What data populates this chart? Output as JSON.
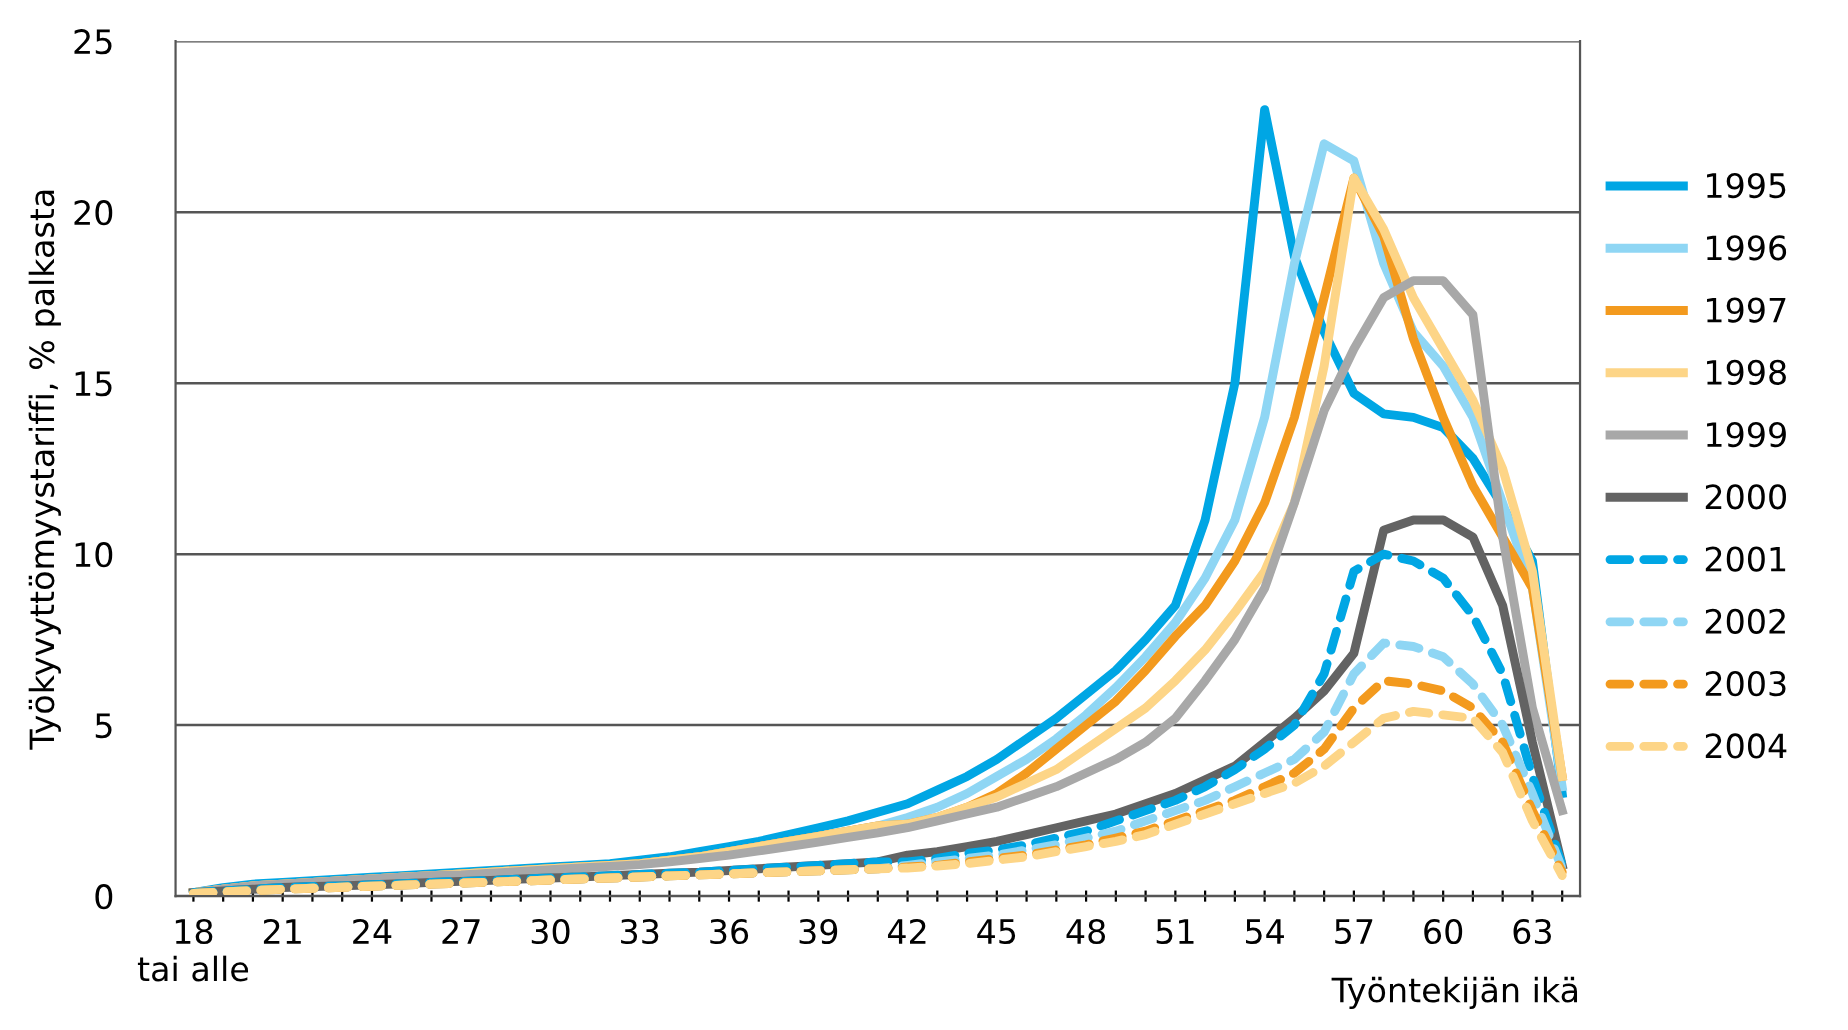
{
  "chart_data": {
    "type": "line",
    "ylabel": "Työkyvyttömyystariffi, % palkasta",
    "xlabel": "Työntekijän ikä",
    "x": [
      18,
      19,
      20,
      21,
      22,
      23,
      24,
      25,
      26,
      27,
      28,
      29,
      30,
      31,
      32,
      33,
      34,
      35,
      36,
      37,
      38,
      39,
      40,
      41,
      42,
      43,
      44,
      45,
      46,
      47,
      48,
      49,
      50,
      51,
      52,
      53,
      54,
      55,
      56,
      57,
      58,
      59,
      60,
      61,
      62,
      63,
      64
    ],
    "xlim": [
      17.4,
      64.6
    ],
    "xticks": [
      {
        "value": 18,
        "label": "18\ntai alle"
      },
      {
        "value": 19,
        "label": null
      },
      {
        "value": 20,
        "label": null
      },
      21,
      {
        "value": 22,
        "label": null
      },
      {
        "value": 23,
        "label": null
      },
      24,
      {
        "value": 25,
        "label": null
      },
      {
        "value": 26,
        "label": null
      },
      27,
      {
        "value": 28,
        "label": null
      },
      {
        "value": 29,
        "label": null
      },
      30,
      {
        "value": 31,
        "label": null
      },
      {
        "value": 32,
        "label": null
      },
      33,
      {
        "value": 34,
        "label": null
      },
      {
        "value": 35,
        "label": null
      },
      36,
      {
        "value": 37,
        "label": null
      },
      {
        "value": 38,
        "label": null
      },
      39,
      {
        "value": 40,
        "label": null
      },
      {
        "value": 41,
        "label": null
      },
      42,
      {
        "value": 43,
        "label": null
      },
      {
        "value": 44,
        "label": null
      },
      45,
      {
        "value": 46,
        "label": null
      },
      {
        "value": 47,
        "label": null
      },
      48,
      {
        "value": 49,
        "label": null
      },
      {
        "value": 50,
        "label": null
      },
      51,
      {
        "value": 52,
        "label": null
      },
      {
        "value": 53,
        "label": null
      },
      54,
      {
        "value": 55,
        "label": null
      },
      {
        "value": 56,
        "label": null
      },
      57,
      {
        "value": 58,
        "label": null
      },
      {
        "value": 59,
        "label": null
      },
      60,
      {
        "value": 61,
        "label": null
      },
      {
        "value": 62,
        "label": null
      },
      63,
      {
        "value": 64,
        "label": null
      }
    ],
    "ylim": [
      0,
      25
    ],
    "yticks": [
      0,
      5,
      10,
      15,
      20,
      25
    ],
    "grid": "y",
    "legend": "right",
    "series": [
      {
        "name": "1995",
        "color": "#00a6e4",
        "line_style": "solid",
        "values": [
          0.1,
          0.25,
          0.35,
          0.4,
          0.45,
          0.5,
          0.55,
          0.6,
          0.65,
          0.7,
          0.75,
          0.8,
          0.85,
          0.9,
          0.95,
          1.05,
          1.15,
          1.3,
          1.45,
          1.6,
          1.8,
          2.0,
          2.2,
          2.45,
          2.7,
          3.1,
          3.5,
          4.0,
          4.6,
          5.2,
          5.9,
          6.6,
          7.5,
          8.5,
          11.0,
          15.0,
          23.0,
          18.7,
          16.5,
          14.7,
          14.1,
          14.0,
          13.7,
          12.8,
          11.4,
          9.8,
          3.0
        ]
      },
      {
        "name": "1996",
        "color": "#8fd6f4",
        "line_style": "solid",
        "values": [
          0.1,
          0.2,
          0.3,
          0.35,
          0.4,
          0.45,
          0.5,
          0.55,
          0.6,
          0.65,
          0.7,
          0.75,
          0.8,
          0.85,
          0.9,
          0.95,
          1.05,
          1.15,
          1.3,
          1.45,
          1.6,
          1.75,
          1.9,
          2.05,
          2.3,
          2.6,
          3.0,
          3.5,
          4.0,
          4.6,
          5.3,
          6.1,
          7.0,
          8.0,
          9.3,
          11.0,
          14.0,
          18.5,
          22.0,
          21.5,
          18.5,
          16.5,
          15.5,
          14.0,
          11.5,
          9.0,
          3.2
        ]
      },
      {
        "name": "1997",
        "color": "#f39a1e",
        "line_style": "solid",
        "values": [
          0.1,
          0.2,
          0.3,
          0.35,
          0.4,
          0.45,
          0.5,
          0.55,
          0.6,
          0.65,
          0.7,
          0.75,
          0.8,
          0.85,
          0.9,
          0.95,
          1.05,
          1.15,
          1.3,
          1.45,
          1.6,
          1.75,
          1.9,
          2.05,
          2.1,
          2.3,
          2.6,
          3.0,
          3.6,
          4.3,
          5.0,
          5.7,
          6.6,
          7.6,
          8.5,
          9.8,
          11.5,
          14.0,
          17.5,
          21.0,
          19.3,
          16.3,
          14.0,
          12.0,
          10.5,
          9.0,
          3.5
        ]
      },
      {
        "name": "1998",
        "color": "#fdd587",
        "line_style": "solid",
        "values": [
          0.1,
          0.2,
          0.3,
          0.35,
          0.4,
          0.45,
          0.5,
          0.55,
          0.6,
          0.65,
          0.7,
          0.75,
          0.8,
          0.85,
          0.9,
          0.95,
          1.05,
          1.15,
          1.3,
          1.45,
          1.6,
          1.75,
          1.9,
          2.05,
          2.1,
          2.3,
          2.6,
          2.9,
          3.3,
          3.7,
          4.3,
          4.9,
          5.5,
          6.3,
          7.2,
          8.3,
          9.5,
          11.5,
          15.5,
          21.0,
          19.5,
          17.5,
          16.0,
          14.5,
          12.5,
          9.5,
          3.5
        ]
      },
      {
        "name": "1999",
        "color": "#a8a8a8",
        "line_style": "solid",
        "values": [
          0.1,
          0.2,
          0.3,
          0.35,
          0.4,
          0.45,
          0.5,
          0.55,
          0.6,
          0.62,
          0.67,
          0.72,
          0.77,
          0.82,
          0.87,
          0.92,
          1.0,
          1.1,
          1.2,
          1.32,
          1.45,
          1.58,
          1.72,
          1.85,
          2.0,
          2.2,
          2.4,
          2.6,
          2.9,
          3.2,
          3.6,
          4.0,
          4.5,
          5.2,
          6.3,
          7.5,
          9.0,
          11.5,
          14.2,
          16.0,
          17.5,
          18.0,
          18.0,
          17.0,
          10.5,
          5.5,
          2.5
        ]
      },
      {
        "name": "2000",
        "color": "#636363",
        "line_style": "solid",
        "values": [
          0.1,
          0.15,
          0.2,
          0.25,
          0.28,
          0.3,
          0.33,
          0.36,
          0.4,
          0.43,
          0.46,
          0.5,
          0.53,
          0.56,
          0.6,
          0.63,
          0.67,
          0.7,
          0.75,
          0.8,
          0.85,
          0.9,
          0.95,
          1.0,
          1.2,
          1.3,
          1.45,
          1.6,
          1.8,
          2.0,
          2.2,
          2.4,
          2.7,
          3.0,
          3.4,
          3.8,
          4.5,
          5.2,
          6.0,
          7.1,
          10.7,
          11.0,
          11.0,
          10.5,
          8.5,
          4.5,
          0.9
        ]
      },
      {
        "name": "2001",
        "color": "#00a6e4",
        "line_style": "dashed",
        "values": [
          0.1,
          0.15,
          0.2,
          0.25,
          0.28,
          0.3,
          0.33,
          0.36,
          0.4,
          0.43,
          0.46,
          0.5,
          0.53,
          0.56,
          0.6,
          0.63,
          0.67,
          0.7,
          0.75,
          0.8,
          0.85,
          0.9,
          0.95,
          1.0,
          1.0,
          1.1,
          1.25,
          1.35,
          1.5,
          1.7,
          1.9,
          2.2,
          2.5,
          2.8,
          3.2,
          3.7,
          4.3,
          5.0,
          6.5,
          9.5,
          10.0,
          9.8,
          9.3,
          8.2,
          6.5,
          3.5,
          0.9
        ]
      },
      {
        "name": "2002",
        "color": "#8fd6f4",
        "line_style": "dashed",
        "values": [
          0.08,
          0.12,
          0.16,
          0.2,
          0.23,
          0.26,
          0.29,
          0.32,
          0.35,
          0.38,
          0.41,
          0.44,
          0.47,
          0.5,
          0.53,
          0.56,
          0.59,
          0.62,
          0.65,
          0.68,
          0.71,
          0.74,
          0.77,
          0.8,
          0.9,
          1.0,
          1.1,
          1.2,
          1.35,
          1.5,
          1.7,
          1.9,
          2.2,
          2.5,
          2.8,
          3.2,
          3.6,
          4.0,
          4.8,
          6.5,
          7.4,
          7.3,
          7.0,
          6.2,
          5.0,
          3.0,
          0.8
        ]
      },
      {
        "name": "2003",
        "color": "#f39a1e",
        "line_style": "dashed",
        "values": [
          0.08,
          0.12,
          0.16,
          0.2,
          0.23,
          0.26,
          0.29,
          0.32,
          0.35,
          0.38,
          0.41,
          0.44,
          0.47,
          0.5,
          0.53,
          0.56,
          0.59,
          0.62,
          0.65,
          0.68,
          0.71,
          0.74,
          0.77,
          0.8,
          0.85,
          0.9,
          1.0,
          1.1,
          1.2,
          1.35,
          1.5,
          1.7,
          1.9,
          2.2,
          2.5,
          2.8,
          3.2,
          3.6,
          4.3,
          5.5,
          6.3,
          6.2,
          6.0,
          5.5,
          4.5,
          2.5,
          0.7
        ]
      },
      {
        "name": "2004",
        "color": "#fdd587",
        "line_style": "dashed",
        "values": [
          0.08,
          0.12,
          0.16,
          0.2,
          0.23,
          0.26,
          0.29,
          0.32,
          0.35,
          0.38,
          0.41,
          0.44,
          0.47,
          0.5,
          0.53,
          0.56,
          0.59,
          0.62,
          0.65,
          0.68,
          0.71,
          0.74,
          0.77,
          0.8,
          0.82,
          0.88,
          0.95,
          1.05,
          1.15,
          1.3,
          1.45,
          1.6,
          1.8,
          2.1,
          2.4,
          2.7,
          3.0,
          3.3,
          3.8,
          4.5,
          5.2,
          5.4,
          5.3,
          5.2,
          4.2,
          2.2,
          0.6
        ]
      }
    ]
  }
}
